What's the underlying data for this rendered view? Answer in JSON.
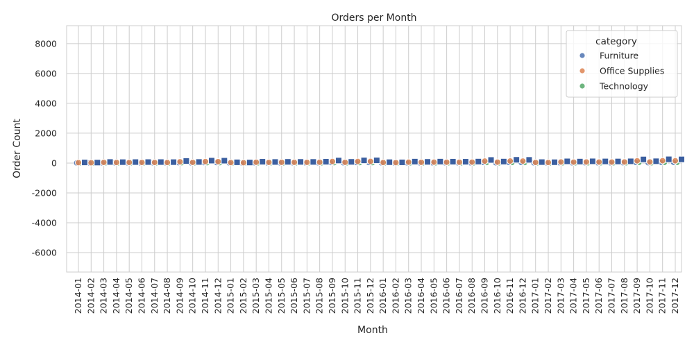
{
  "chart_data": {
    "type": "scatter",
    "title": "Orders per Month",
    "xlabel": "Month",
    "ylabel": "Order Count",
    "ylim": [
      -7300,
      9200
    ],
    "yticks": [
      -6000,
      -4000,
      -2000,
      0,
      2000,
      4000,
      6000,
      8000
    ],
    "grid": true,
    "legend": {
      "title": "category",
      "placement": "top-right",
      "entries": [
        "Furniture",
        "Office Supplies",
        "Technology"
      ]
    },
    "categories": [
      "2014-01",
      "2014-02",
      "2014-03",
      "2014-04",
      "2014-05",
      "2014-06",
      "2014-07",
      "2014-08",
      "2014-09",
      "2014-10",
      "2014-11",
      "2014-12",
      "2015-01",
      "2015-02",
      "2015-03",
      "2015-04",
      "2015-05",
      "2015-06",
      "2015-07",
      "2015-08",
      "2015-09",
      "2015-10",
      "2015-11",
      "2015-12",
      "2016-01",
      "2016-02",
      "2016-03",
      "2016-04",
      "2016-05",
      "2016-06",
      "2016-07",
      "2016-08",
      "2016-09",
      "2016-10",
      "2016-11",
      "2016-12",
      "2017-01",
      "2017-02",
      "2017-03",
      "2017-04",
      "2017-05",
      "2017-06",
      "2017-07",
      "2017-08",
      "2017-09",
      "2017-10",
      "2017-11",
      "2017-12"
    ],
    "series": [
      {
        "name": "Furniture",
        "color": "#4c72b0",
        "values": [
          8,
          6,
          15,
          12,
          13,
          14,
          14,
          13,
          28,
          15,
          34,
          33,
          10,
          7,
          18,
          15,
          17,
          16,
          16,
          19,
          35,
          16,
          36,
          37,
          12,
          10,
          20,
          16,
          20,
          19,
          18,
          20,
          42,
          20,
          45,
          44,
          12,
          11,
          24,
          20,
          24,
          22,
          22,
          24,
          50,
          25,
          52,
          51
        ]
      },
      {
        "name": "Office Supplies",
        "color": "#dd8452",
        "values": [
          25,
          20,
          44,
          38,
          40,
          40,
          40,
          37,
          85,
          45,
          100,
          98,
          30,
          22,
          55,
          45,
          50,
          48,
          47,
          55,
          105,
          50,
          110,
          112,
          35,
          28,
          60,
          50,
          60,
          58,
          55,
          62,
          128,
          62,
          135,
          132,
          40,
          35,
          70,
          62,
          72,
          68,
          66,
          72,
          150,
          75,
          155,
          152
        ]
      },
      {
        "name": "Technology",
        "color": "#55a868",
        "values": [
          7,
          5,
          12,
          10,
          12,
          11,
          11,
          11,
          24,
          12,
          28,
          27,
          9,
          6,
          15,
          12,
          14,
          13,
          13,
          15,
          29,
          14,
          31,
          31,
          10,
          8,
          17,
          14,
          17,
          16,
          15,
          17,
          36,
          17,
          38,
          37,
          11,
          9,
          20,
          17,
          20,
          19,
          18,
          20,
          42,
          21,
          44,
          43
        ]
      }
    ],
    "total_series": {
      "marker": "square",
      "color": "#3b5fa0",
      "values": [
        40,
        31,
        71,
        60,
        65,
        65,
        65,
        61,
        137,
        72,
        162,
        158,
        49,
        35,
        88,
        72,
        81,
        77,
        76,
        89,
        169,
        80,
        177,
        180,
        57,
        46,
        97,
        80,
        97,
        93,
        88,
        99,
        206,
        99,
        218,
        213,
        63,
        55,
        114,
        99,
        116,
        109,
        106,
        116,
        242,
        121,
        251,
        246
      ]
    }
  }
}
